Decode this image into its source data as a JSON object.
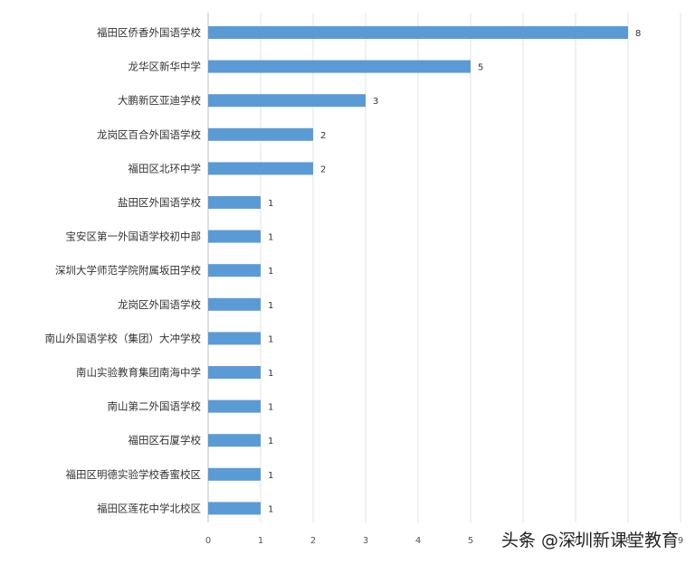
{
  "chart_data": {
    "type": "bar",
    "orientation": "horizontal",
    "categories": [
      "福田区侨香外国语学校",
      "龙华区新华中学",
      "大鹏新区亚迪学校",
      "龙岗区百合外国语学校",
      "福田区北环中学",
      "盐田区外国语学校",
      "宝安区第一外国语学校初中部",
      "深圳大学师范学院附属坂田学校",
      "龙岗区外国语学校",
      "南山外国语学校（集团）大冲学校",
      "南山实验教育集团南海中学",
      "南山第二外国语学校",
      "福田区石厦学校",
      "福田区明德实验学校香蜜校区",
      "福田区莲花中学北校区"
    ],
    "values": [
      8,
      5,
      3,
      2,
      2,
      1,
      1,
      1,
      1,
      1,
      1,
      1,
      1,
      1,
      1
    ],
    "xlim": [
      0,
      9
    ],
    "x_ticks": [
      "0",
      "1",
      "2",
      "3",
      "4",
      "5",
      "6",
      "7",
      "8",
      "9"
    ],
    "title": "",
    "xlabel": "",
    "ylabel": "",
    "grid": "vertical",
    "bar_color": "#5b9bd5",
    "data_labels": true
  },
  "watermark": {
    "text": "头条 @深圳新课堂教育"
  }
}
